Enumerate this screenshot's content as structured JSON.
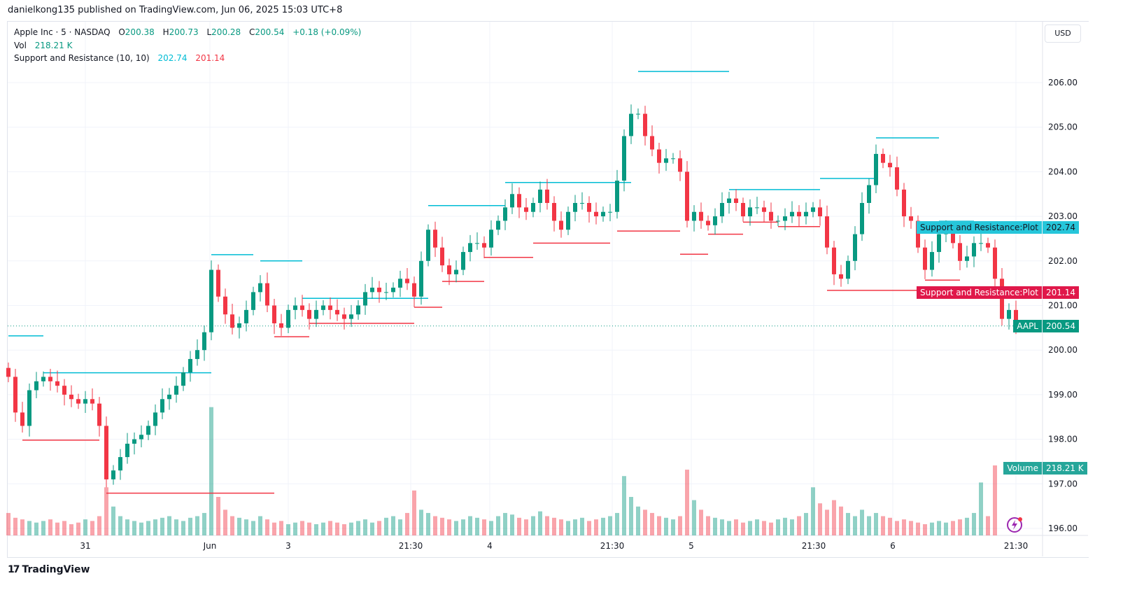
{
  "publisher_line": "danielkong135 published on TradingView.com, Jun 06, 2025 15:03 UTC+8",
  "legend": {
    "symbol": "Apple Inc · 5 · NASDAQ",
    "o_label": "O",
    "o": "200.38",
    "h_label": "H",
    "h": "200.73",
    "l_label": "L",
    "l": "200.28",
    "c_label": "C",
    "c": "200.54",
    "change": "+0.18 (+0.09%)",
    "vol_label": "Vol",
    "vol": "218.21 K",
    "sr_label": "Support and Resistance (10, 10)",
    "sr_resistance": "202.74",
    "sr_support": "201.14"
  },
  "currency_button": "USD",
  "tags": {
    "resistance_name": "Support and Resistance:Plot",
    "resistance_value": "202.74",
    "support_name": "Support and Resistance:Plot",
    "support_value": "201.14",
    "symbol_name": "AAPL",
    "symbol_value": "200.54",
    "volume_name": "Volume",
    "volume_value": "218.21 K"
  },
  "brand": "TradingView",
  "colors": {
    "up": "#089981",
    "down": "#f23645",
    "resistance": "#00bcd4",
    "support": "#f23645",
    "grid": "#f0f3fa"
  },
  "chart_data": {
    "type": "candlestick",
    "symbol": "AAPL",
    "interval": "5",
    "ylim": [
      195.8,
      206.6
    ],
    "y_ticks": [
      "196.00",
      "197.00",
      "198.00",
      "199.00",
      "200.00",
      "201.00",
      "202.00",
      "203.00",
      "204.00",
      "205.00",
      "206.00"
    ],
    "x_ticks": [
      {
        "label": "31",
        "index": 11
      },
      {
        "label": "Jun",
        "index": 28.8
      },
      {
        "label": "3",
        "index": 40
      },
      {
        "label": "21:30",
        "index": 57.5
      },
      {
        "label": "4",
        "index": 68.8
      },
      {
        "label": "21:30",
        "index": 86.3
      },
      {
        "label": "5",
        "index": 97.6
      },
      {
        "label": "21:30",
        "index": 115.1
      },
      {
        "label": "6",
        "index": 126.4
      },
      {
        "label": "21:30",
        "index": 144
      }
    ],
    "closes": [
      199.4,
      198.6,
      198.3,
      199.1,
      199.3,
      199.4,
      199.3,
      199.2,
      199.0,
      198.9,
      198.8,
      198.9,
      198.8,
      198.3,
      197.1,
      197.3,
      197.6,
      197.9,
      198.0,
      198.1,
      198.3,
      198.6,
      198.9,
      199.0,
      199.2,
      199.5,
      199.8,
      200.0,
      200.4,
      201.8,
      201.2,
      200.8,
      200.5,
      200.6,
      200.9,
      201.3,
      201.5,
      201.0,
      200.6,
      200.5,
      200.9,
      201.0,
      200.9,
      200.7,
      200.9,
      201.0,
      200.9,
      200.8,
      200.7,
      200.8,
      201.0,
      201.3,
      201.4,
      201.3,
      201.3,
      201.4,
      201.6,
      201.5,
      201.2,
      202.0,
      202.7,
      202.3,
      201.9,
      201.7,
      201.8,
      202.2,
      202.4,
      202.4,
      202.3,
      202.7,
      202.9,
      203.2,
      203.5,
      203.2,
      203.1,
      203.3,
      203.6,
      203.3,
      202.9,
      202.7,
      203.1,
      203.3,
      203.3,
      203.1,
      203.0,
      203.1,
      203.1,
      203.8,
      204.8,
      205.3,
      205.3,
      204.8,
      204.5,
      204.2,
      204.3,
      204.3,
      204.0,
      202.9,
      203.1,
      202.9,
      202.8,
      203.0,
      203.3,
      203.4,
      203.3,
      203.0,
      203.2,
      203.2,
      203.1,
      202.9,
      202.9,
      203.0,
      203.1,
      203.0,
      203.1,
      203.2,
      203.0,
      202.3,
      201.7,
      201.6,
      202.0,
      202.6,
      203.3,
      203.7,
      204.4,
      204.2,
      204.1,
      203.6,
      203.0,
      202.9,
      202.3,
      201.8,
      202.2,
      202.6,
      202.7,
      202.4,
      202.0,
      202.1,
      202.4,
      202.4,
      202.3,
      201.6,
      200.7,
      200.9,
      200.54
    ],
    "first_open": 199.6,
    "volumes_k": [
      70,
      55,
      50,
      45,
      40,
      45,
      50,
      40,
      45,
      35,
      40,
      50,
      45,
      60,
      150,
      90,
      60,
      50,
      45,
      40,
      45,
      50,
      55,
      60,
      50,
      45,
      55,
      60,
      70,
      400,
      120,
      80,
      60,
      55,
      50,
      45,
      60,
      50,
      40,
      45,
      35,
      40,
      45,
      40,
      35,
      40,
      45,
      40,
      35,
      40,
      45,
      50,
      40,
      45,
      55,
      60,
      50,
      70,
      140,
      80,
      70,
      60,
      55,
      50,
      45,
      50,
      60,
      55,
      50,
      45,
      60,
      70,
      65,
      55,
      50,
      60,
      75,
      60,
      55,
      50,
      45,
      50,
      55,
      45,
      50,
      55,
      60,
      70,
      185,
      120,
      90,
      80,
      70,
      60,
      55,
      50,
      60,
      205,
      110,
      80,
      60,
      55,
      50,
      45,
      50,
      40,
      45,
      50,
      45,
      40,
      50,
      55,
      50,
      60,
      70,
      150,
      100,
      80,
      110,
      90,
      70,
      60,
      80,
      60,
      70,
      60,
      55,
      45,
      50,
      45,
      40,
      35,
      40,
      45,
      40,
      45,
      50,
      55,
      70,
      165,
      60,
      218.21
    ],
    "indicator": {
      "name": "Support and Resistance (10, 10)",
      "resistance_segments": [
        [
          0,
          5,
          200.32
        ],
        [
          5,
          29,
          199.49
        ],
        [
          29,
          35,
          202.14
        ],
        [
          36,
          42,
          202.0
        ],
        [
          42,
          60,
          201.16
        ],
        [
          60,
          71,
          203.24
        ],
        [
          71,
          89,
          203.76
        ],
        [
          90,
          103,
          206.25
        ],
        [
          103,
          116,
          203.6
        ],
        [
          116,
          124,
          203.85
        ],
        [
          124,
          133,
          204.76
        ],
        [
          133,
          138,
          202.89
        ]
      ],
      "support_segments": [
        [
          2,
          13,
          197.98
        ],
        [
          14,
          38,
          196.79
        ],
        [
          38,
          43,
          200.3
        ],
        [
          43,
          58,
          200.6
        ],
        [
          58,
          62,
          200.96
        ],
        [
          62,
          68,
          201.54
        ],
        [
          68,
          75,
          202.08
        ],
        [
          75,
          86,
          202.4
        ],
        [
          87,
          96,
          202.67
        ],
        [
          96,
          100,
          202.15
        ],
        [
          100,
          105,
          202.6
        ],
        [
          105,
          110,
          202.87
        ],
        [
          110,
          116,
          202.77
        ],
        [
          117,
          131,
          201.34
        ],
        [
          131,
          136,
          201.57
        ]
      ]
    },
    "last_price": 200.54,
    "legend_placement": "top-left"
  }
}
